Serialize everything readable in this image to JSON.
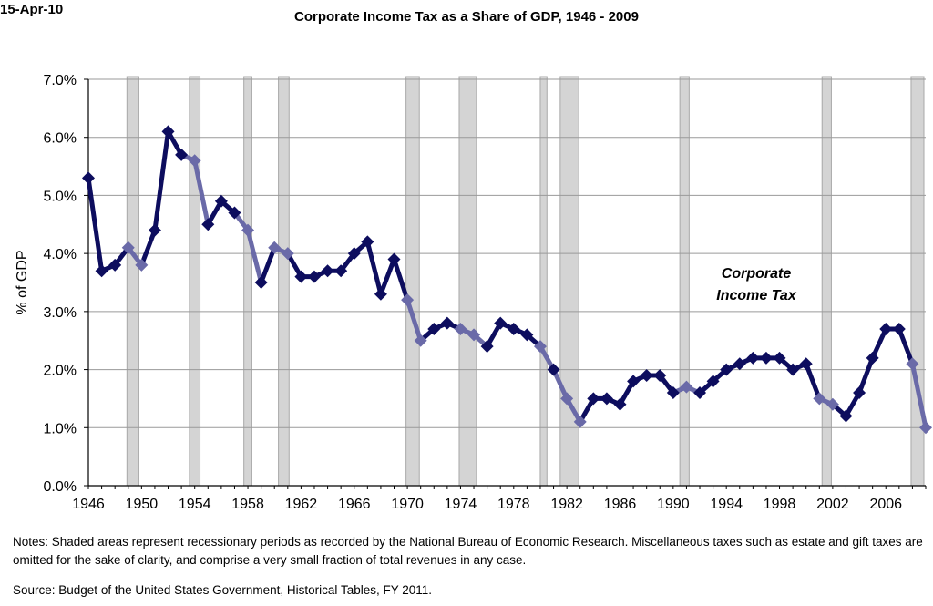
{
  "header": {
    "date": "15-Apr-10",
    "title": "Corporate Income Tax as a Share of GDP, 1946 - 2009"
  },
  "chart_data": {
    "type": "line",
    "title": "Corporate Income Tax as a Share of GDP, 1946 - 2009",
    "xlabel": "",
    "ylabel": "% of GDP",
    "xlim": [
      1946,
      2009
    ],
    "ylim": [
      0,
      7
    ],
    "x_ticks": [
      "1946",
      "1950",
      "1954",
      "1958",
      "1962",
      "1966",
      "1970",
      "1974",
      "1978",
      "1982",
      "1986",
      "1990",
      "1994",
      "1998",
      "2002",
      "2006"
    ],
    "x_tick_values": [
      1946,
      1950,
      1954,
      1958,
      1962,
      1966,
      1970,
      1974,
      1978,
      1982,
      1986,
      1990,
      1994,
      1998,
      2002,
      2006
    ],
    "y_ticks": [
      "0.0%",
      "1.0%",
      "2.0%",
      "3.0%",
      "4.0%",
      "5.0%",
      "6.0%",
      "7.0%"
    ],
    "y_tick_values": [
      0,
      1,
      2,
      3,
      4,
      5,
      6,
      7
    ],
    "grid": "horizontal",
    "series": [
      {
        "name": "Corporate Income Tax",
        "color": "#0d0d5e",
        "recession_color": "#6a6aa8",
        "x": [
          1946,
          1947,
          1948,
          1949,
          1950,
          1951,
          1952,
          1953,
          1954,
          1955,
          1956,
          1957,
          1958,
          1959,
          1960,
          1961,
          1962,
          1963,
          1964,
          1965,
          1966,
          1967,
          1968,
          1969,
          1970,
          1971,
          1972,
          1973,
          1974,
          1975,
          1976,
          1977,
          1978,
          1979,
          1980,
          1981,
          1982,
          1983,
          1984,
          1985,
          1986,
          1987,
          1988,
          1989,
          1990,
          1991,
          1992,
          1993,
          1994,
          1995,
          1996,
          1997,
          1998,
          1999,
          2000,
          2001,
          2002,
          2003,
          2004,
          2005,
          2006,
          2007,
          2008,
          2009
        ],
        "values": [
          5.3,
          3.7,
          3.8,
          4.1,
          3.8,
          4.4,
          6.1,
          5.7,
          5.6,
          4.5,
          4.9,
          4.7,
          4.4,
          3.5,
          4.1,
          4.0,
          3.6,
          3.6,
          3.7,
          3.7,
          4.0,
          4.2,
          3.3,
          3.9,
          3.2,
          2.5,
          2.7,
          2.8,
          2.7,
          2.6,
          2.4,
          2.8,
          2.7,
          2.6,
          2.4,
          2.0,
          1.5,
          1.1,
          1.5,
          1.5,
          1.4,
          1.8,
          1.9,
          1.9,
          1.6,
          1.7,
          1.6,
          1.8,
          2.0,
          2.1,
          2.2,
          2.2,
          2.2,
          2.0,
          2.1,
          1.5,
          1.4,
          1.2,
          1.6,
          2.2,
          2.7,
          2.7,
          2.1,
          1.0
        ]
      }
    ],
    "recessions": [
      [
        1948.9,
        1949.8
      ],
      [
        1953.6,
        1954.4
      ],
      [
        1957.7,
        1958.3
      ],
      [
        1960.3,
        1961.1
      ],
      [
        1969.9,
        1970.9
      ],
      [
        1973.9,
        1975.2
      ],
      [
        1980.0,
        1980.5
      ],
      [
        1981.5,
        1982.9
      ],
      [
        1990.5,
        1991.2
      ],
      [
        2001.2,
        2001.9
      ],
      [
        2007.9,
        2009.4
      ]
    ],
    "recession_color": "#d4d4d4",
    "annotations": [
      {
        "text": "Corporate Income Tax",
        "at": [
          1996,
          3.0
        ]
      }
    ]
  },
  "annotation": {
    "line1": "Corporate",
    "line2": "Income Tax"
  },
  "footer": {
    "notes": "Notes:  Shaded areas represent recessionary periods as recorded by the National Bureau of Economic Research.  Miscellaneous taxes such as estate and gift taxes are omitted for the sake of clarity, and comprise a very small fraction of total revenues in any case.",
    "source": "Source:  Budget of the United States Government, Historical Tables, FY 2011."
  }
}
